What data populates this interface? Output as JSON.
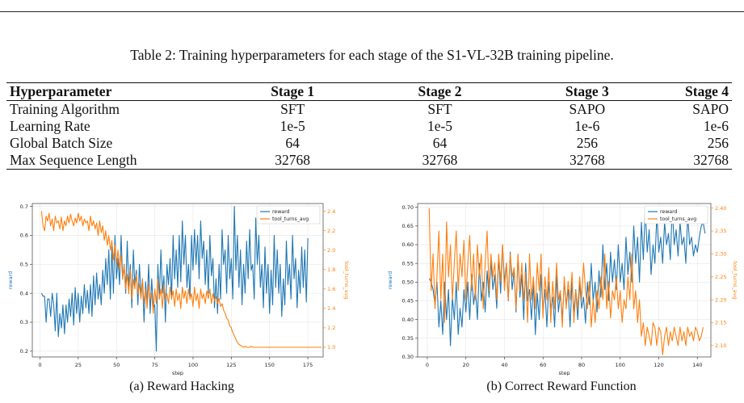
{
  "table": {
    "caption": "Table 2: Training hyperparameters for each stage of the S1-VL-32B training pipeline.",
    "headers": [
      "Hyperparameter",
      "Stage 1",
      "Stage 2",
      "Stage 3",
      "Stage 4"
    ],
    "rows": [
      [
        "Training Algorithm",
        "SFT",
        "SFT",
        "SAPO",
        "SAPO"
      ],
      [
        "Learning Rate",
        "1e-5",
        "1e-5",
        "1e-6",
        "1e-6"
      ],
      [
        "Global Batch Size",
        "64",
        "64",
        "256",
        "256"
      ],
      [
        "Max Sequence Length",
        "32768",
        "32768",
        "32768",
        "32768"
      ]
    ]
  },
  "figures": {
    "a": {
      "caption": "(a) Reward Hacking"
    },
    "b": {
      "caption": "(b) Correct Reward Function"
    }
  },
  "chart_data": [
    {
      "type": "line",
      "xlabel": "step",
      "ylabel": "reward",
      "y2label": "tool_turns_avg",
      "xlim": [
        -5,
        185
      ],
      "ylim": [
        0.18,
        0.71
      ],
      "y2lim": [
        0.9,
        2.48
      ],
      "xticks": [
        0,
        25,
        50,
        75,
        100,
        125,
        150,
        175
      ],
      "yticks": [
        0.2,
        0.3,
        0.4,
        0.5,
        0.6,
        0.7
      ],
      "y2ticks": [
        1.0,
        1.2,
        1.4,
        1.6,
        1.8,
        2.0,
        2.2,
        2.4
      ],
      "grid": true,
      "legend": "top-right",
      "series": [
        {
          "name": "reward",
          "axis": "left",
          "color": "#1f77b4",
          "x_start": 1,
          "x_step": 1,
          "values": [
            0.4,
            0.39,
            0.39,
            0.3,
            0.38,
            0.38,
            0.32,
            0.4,
            0.36,
            0.27,
            0.4,
            0.25,
            0.33,
            0.28,
            0.36,
            0.26,
            0.36,
            0.3,
            0.38,
            0.32,
            0.4,
            0.29,
            0.42,
            0.33,
            0.4,
            0.3,
            0.39,
            0.33,
            0.43,
            0.35,
            0.41,
            0.33,
            0.43,
            0.32,
            0.46,
            0.36,
            0.47,
            0.38,
            0.43,
            0.36,
            0.48,
            0.4,
            0.52,
            0.43,
            0.55,
            0.38,
            0.56,
            0.4,
            0.6,
            0.45,
            0.52,
            0.43,
            0.6,
            0.45,
            0.5,
            0.4,
            0.58,
            0.42,
            0.5,
            0.35,
            0.55,
            0.43,
            0.48,
            0.36,
            0.5,
            0.39,
            0.45,
            0.3,
            0.44,
            0.36,
            0.5,
            0.33,
            0.45,
            0.35,
            0.36,
            0.2,
            0.5,
            0.38,
            0.55,
            0.4,
            0.46,
            0.3,
            0.5,
            0.43,
            0.52,
            0.38,
            0.6,
            0.45,
            0.55,
            0.42,
            0.6,
            0.44,
            0.65,
            0.5,
            0.6,
            0.42,
            0.5,
            0.38,
            0.6,
            0.48,
            0.62,
            0.5,
            0.6,
            0.45,
            0.65,
            0.52,
            0.58,
            0.43,
            0.55,
            0.4,
            0.6,
            0.46,
            0.52,
            0.35,
            0.45,
            0.33,
            0.5,
            0.38,
            0.62,
            0.5,
            0.55,
            0.4,
            0.6,
            0.45,
            0.52,
            0.38,
            0.7,
            0.48,
            0.6,
            0.42,
            0.55,
            0.36,
            0.5,
            0.4,
            0.58,
            0.45,
            0.62,
            0.48,
            0.5,
            0.38,
            0.66,
            0.5,
            0.6,
            0.42,
            0.5,
            0.35,
            0.56,
            0.4,
            0.5,
            0.33,
            0.48,
            0.36,
            0.6,
            0.42,
            0.55,
            0.4,
            0.5,
            0.32,
            0.45,
            0.36,
            0.58,
            0.43,
            0.5,
            0.38,
            0.6,
            0.45,
            0.52,
            0.35,
            0.48,
            0.4,
            0.56,
            0.42,
            0.55,
            0.37,
            0.59
          ]
        },
        {
          "name": "tool_turns_avg",
          "axis": "right",
          "color": "#ff7f0e",
          "x_start": 1,
          "x_step": 1,
          "values": [
            2.4,
            2.25,
            2.2,
            2.35,
            2.3,
            2.38,
            2.25,
            2.32,
            2.2,
            2.35,
            2.28,
            2.3,
            2.22,
            2.34,
            2.2,
            2.3,
            2.25,
            2.35,
            2.28,
            2.37,
            2.3,
            2.25,
            2.33,
            2.28,
            2.38,
            2.3,
            2.35,
            2.25,
            2.32,
            2.28,
            2.3,
            2.2,
            2.35,
            2.25,
            2.3,
            2.22,
            2.28,
            2.15,
            2.3,
            2.18,
            2.25,
            2.1,
            2.2,
            2.05,
            2.15,
            2.0,
            2.1,
            1.9,
            2.05,
            1.85,
            2.0,
            1.8,
            1.95,
            1.7,
            1.85,
            1.6,
            1.75,
            1.55,
            1.8,
            1.5,
            1.7,
            1.6,
            1.75,
            1.55,
            1.65,
            1.5,
            1.7,
            1.45,
            1.6,
            1.4,
            1.65,
            1.5,
            1.55,
            1.35,
            1.6,
            1.45,
            1.7,
            1.5,
            1.6,
            1.4,
            1.65,
            1.5,
            1.55,
            1.45,
            1.62,
            1.5,
            1.58,
            1.42,
            1.6,
            1.48,
            1.55,
            1.4,
            1.62,
            1.5,
            1.58,
            1.45,
            1.6,
            1.5,
            1.55,
            1.42,
            1.62,
            1.48,
            1.55,
            1.4,
            1.6,
            1.5,
            1.55,
            1.45,
            1.58,
            1.5,
            1.6,
            1.45,
            1.55,
            1.48,
            1.52,
            1.45,
            1.5,
            1.42,
            1.45,
            1.38,
            1.35,
            1.3,
            1.28,
            1.22,
            1.2,
            1.15,
            1.12,
            1.08,
            1.05,
            1.03,
            1.02,
            1.01,
            1.0,
            1.01,
            1.0,
            1.0,
            1.0,
            1.01,
            1.0,
            1.0,
            1.0,
            1.0,
            1.0,
            1.0,
            1.0,
            1.0,
            1.0,
            1.0,
            1.0,
            1.0,
            1.0,
            1.0,
            1.0,
            1.0,
            1.0,
            1.0,
            1.0,
            1.0,
            1.0,
            1.0,
            1.0,
            1.0,
            1.0,
            1.0,
            1.0,
            1.0,
            1.0,
            1.0,
            1.0,
            1.0,
            1.0,
            1.0,
            1.0,
            1.0,
            1.0,
            1.0,
            1.0,
            1.0,
            1.0,
            1.0,
            1.0,
            1.0,
            1.0,
            1.0
          ]
        }
      ]
    },
    {
      "type": "line",
      "xlabel": "step",
      "ylabel": "reward",
      "y2label": "tool_turns_avg",
      "xlim": [
        -5,
        147
      ],
      "ylim": [
        0.3,
        0.71
      ],
      "y2lim": [
        2.075,
        2.41
      ],
      "xticks": [
        0,
        20,
        40,
        60,
        80,
        100,
        120,
        140
      ],
      "yticks": [
        0.3,
        0.35,
        0.4,
        0.45,
        0.5,
        0.55,
        0.6,
        0.65,
        0.7
      ],
      "y2ticks": [
        2.1,
        2.15,
        2.2,
        2.25,
        2.3,
        2.35,
        2.4
      ],
      "grid": true,
      "legend": "top-right",
      "series": [
        {
          "name": "reward",
          "axis": "left",
          "color": "#1f77b4",
          "x_start": 1,
          "x_step": 1,
          "values": [
            0.51,
            0.5,
            0.48,
            0.44,
            0.5,
            0.38,
            0.45,
            0.36,
            0.5,
            0.4,
            0.48,
            0.33,
            0.46,
            0.4,
            0.5,
            0.36,
            0.43,
            0.38,
            0.48,
            0.42,
            0.5,
            0.4,
            0.52,
            0.44,
            0.48,
            0.4,
            0.55,
            0.45,
            0.5,
            0.42,
            0.53,
            0.46,
            0.56,
            0.48,
            0.52,
            0.43,
            0.57,
            0.47,
            0.6,
            0.5,
            0.55,
            0.45,
            0.58,
            0.48,
            0.53,
            0.42,
            0.57,
            0.46,
            0.52,
            0.4,
            0.55,
            0.45,
            0.48,
            0.4,
            0.5,
            0.36,
            0.47,
            0.4,
            0.52,
            0.42,
            0.48,
            0.38,
            0.5,
            0.43,
            0.46,
            0.38,
            0.52,
            0.42,
            0.47,
            0.4,
            0.5,
            0.44,
            0.48,
            0.38,
            0.5,
            0.42,
            0.48,
            0.4,
            0.5,
            0.43,
            0.46,
            0.39,
            0.5,
            0.44,
            0.55,
            0.45,
            0.5,
            0.42,
            0.53,
            0.46,
            0.6,
            0.48,
            0.55,
            0.45,
            0.58,
            0.5,
            0.56,
            0.48,
            0.6,
            0.5,
            0.55,
            0.48,
            0.62,
            0.52,
            0.58,
            0.5,
            0.65,
            0.55,
            0.62,
            0.5,
            0.66,
            0.56,
            0.7,
            0.58,
            0.64,
            0.52,
            0.6,
            0.55,
            0.68,
            0.58,
            0.62,
            0.55,
            0.66,
            0.6,
            0.63,
            0.56,
            0.7,
            0.6,
            0.64,
            0.57,
            0.66,
            0.6,
            0.62,
            0.55,
            0.68,
            0.6,
            0.62,
            0.57,
            0.6,
            0.58,
            0.62,
            0.65,
            0.66,
            0.63
          ]
        },
        {
          "name": "tool_turns_avg",
          "axis": "right",
          "color": "#ff7f0e",
          "x_start": 1,
          "x_step": 1,
          "values": [
            2.4,
            2.22,
            2.3,
            2.18,
            2.25,
            2.35,
            2.2,
            2.3,
            2.15,
            2.37,
            2.25,
            2.32,
            2.2,
            2.28,
            2.35,
            2.22,
            2.3,
            2.25,
            2.33,
            2.2,
            2.28,
            2.34,
            2.22,
            2.3,
            2.2,
            2.32,
            2.25,
            2.3,
            2.18,
            2.28,
            2.35,
            2.22,
            2.3,
            2.25,
            2.28,
            2.2,
            2.3,
            2.24,
            2.32,
            2.22,
            2.28,
            2.2,
            2.3,
            2.25,
            2.27,
            2.18,
            2.3,
            2.22,
            2.28,
            2.2,
            2.26,
            2.15,
            2.3,
            2.2,
            2.25,
            2.18,
            2.28,
            2.22,
            2.3,
            2.16,
            2.25,
            2.2,
            2.27,
            2.15,
            2.24,
            2.18,
            2.28,
            2.2,
            2.22,
            2.14,
            2.25,
            2.18,
            2.24,
            2.2,
            2.26,
            2.15,
            2.22,
            2.18,
            2.25,
            2.2,
            2.28,
            2.22,
            2.18,
            2.24,
            2.14,
            2.2,
            2.15,
            2.22,
            2.18,
            2.25,
            2.2,
            2.3,
            2.18,
            2.24,
            2.16,
            2.22,
            2.2,
            2.25,
            2.18,
            2.22,
            2.15,
            2.2,
            2.18,
            2.25,
            2.2,
            2.3,
            2.18,
            2.22,
            2.15,
            2.2,
            2.12,
            2.15,
            2.1,
            2.14,
            2.12,
            2.1,
            2.15,
            2.14,
            2.1,
            2.14,
            2.13,
            2.08,
            2.12,
            2.14,
            2.1,
            2.13,
            2.11,
            2.14,
            2.12,
            2.1,
            2.14,
            2.11,
            2.13,
            2.1,
            2.14,
            2.12,
            2.13,
            2.11,
            2.14,
            2.13,
            2.11,
            2.12,
            2.14
          ]
        }
      ]
    }
  ]
}
